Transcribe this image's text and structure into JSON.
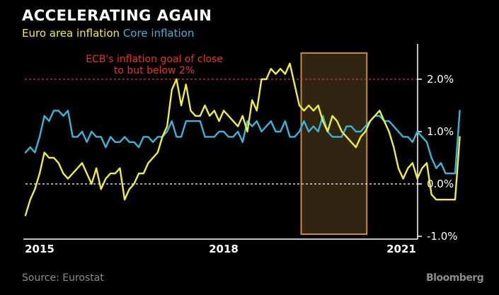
{
  "header": {
    "title": "ACCELERATING AGAIN",
    "legend_euro": "Euro area inflation",
    "legend_core": "Core inflation"
  },
  "footer": {
    "source": "Source: Eurostat",
    "brand": "Bloomberg"
  },
  "chart_data": {
    "type": "line",
    "title": "ACCELERATING AGAIN",
    "xlabel": "",
    "ylabel": "",
    "x_ticks": [
      "2015",
      "2018",
      "2021"
    ],
    "y_ticks": [
      "2.0%",
      "1.0%",
      "0.0%",
      "-1.0%"
    ],
    "y_tick_values": [
      2.0,
      1.0,
      0.0,
      -1.0
    ],
    "ylim": [
      -1.0,
      2.0
    ],
    "grid": false,
    "colors": {
      "euro": "#f2ee3e",
      "core": "#36b6db",
      "goal": "#e8302a",
      "highlight_fill": "#3a2a14",
      "highlight_stroke": "#c68a3c"
    },
    "annotation": "ECB's inflation goal of close to but below 2%",
    "annotation_lines": [
      "ECB's inflation goal of close",
      "to but below 2%"
    ],
    "goal_value": 2.0,
    "zero_line": 0.0,
    "highlight": {
      "from": "2019-12",
      "to": "2021-01"
    },
    "series": [
      {
        "name": "Euro area inflation",
        "color": "#f2ee3e",
        "points": [
          [
            "2015-01",
            -0.6
          ],
          [
            "2015-02",
            -0.3
          ],
          [
            "2015-03",
            -0.1
          ],
          [
            "2015-04",
            0.2
          ],
          [
            "2015-05",
            0.6
          ],
          [
            "2015-06",
            0.5
          ],
          [
            "2015-07",
            0.5
          ],
          [
            "2015-08",
            0.4
          ],
          [
            "2015-09",
            0.2
          ],
          [
            "2015-10",
            0.1
          ],
          [
            "2015-11",
            0.2
          ],
          [
            "2015-12",
            0.3
          ],
          [
            "2016-01",
            0.4
          ],
          [
            "2016-02",
            0.2
          ],
          [
            "2016-03",
            0.0
          ],
          [
            "2016-04",
            0.3
          ],
          [
            "2016-05",
            -0.1
          ],
          [
            "2016-06",
            0.1
          ],
          [
            "2016-07",
            0.2
          ],
          [
            "2016-08",
            0.2
          ],
          [
            "2016-09",
            0.3
          ],
          [
            "2016-10",
            -0.3
          ],
          [
            "2016-11",
            -0.1
          ],
          [
            "2016-12",
            0.0
          ],
          [
            "2017-01",
            0.2
          ],
          [
            "2017-02",
            0.2
          ],
          [
            "2017-03",
            0.4
          ],
          [
            "2017-04",
            0.5
          ],
          [
            "2017-05",
            0.6
          ],
          [
            "2017-06",
            0.9
          ],
          [
            "2017-07",
            1.1
          ],
          [
            "2017-08",
            1.8
          ],
          [
            "2017-09",
            2.0
          ],
          [
            "2017-10",
            1.5
          ],
          [
            "2017-11",
            1.9
          ],
          [
            "2017-12",
            1.4
          ],
          [
            "2018-01",
            1.3
          ],
          [
            "2018-02",
            1.3
          ],
          [
            "2018-03",
            1.5
          ],
          [
            "2018-04",
            1.3
          ],
          [
            "2018-05",
            1.4
          ],
          [
            "2018-06",
            1.2
          ],
          [
            "2018-07",
            1.4
          ],
          [
            "2018-08",
            1.3
          ],
          [
            "2018-09",
            1.2
          ],
          [
            "2018-10",
            1.1
          ],
          [
            "2018-11",
            1.3
          ],
          [
            "2018-12",
            1.0
          ],
          [
            "2019-01",
            1.6
          ],
          [
            "2019-02",
            1.4
          ],
          [
            "2019-03",
            2.0
          ],
          [
            "2019-04",
            2.0
          ],
          [
            "2019-05",
            2.2
          ],
          [
            "2019-06",
            2.1
          ],
          [
            "2019-07",
            2.2
          ],
          [
            "2019-08",
            2.1
          ],
          [
            "2019-09",
            2.3
          ],
          [
            "2019-10",
            1.9
          ],
          [
            "2019-11",
            1.5
          ],
          [
            "2019-12",
            1.4
          ],
          [
            "2020-01",
            1.5
          ],
          [
            "2020-02",
            1.4
          ],
          [
            "2020-03",
            1.5
          ],
          [
            "2020-04",
            1.2
          ],
          [
            "2020-05",
            1.0
          ],
          [
            "2020-06",
            1.3
          ],
          [
            "2020-07",
            1.2
          ],
          [
            "2020-08",
            1.0
          ],
          [
            "2020-09",
            0.9
          ],
          [
            "2020-10",
            0.8
          ],
          [
            "2020-11",
            0.7
          ],
          [
            "2020-12",
            0.9
          ],
          [
            "2021-01",
            1.0
          ],
          [
            "2021-02",
            1.2
          ],
          [
            "2021-03",
            1.3
          ],
          [
            "2021-04",
            1.4
          ],
          [
            "2021-05",
            1.2
          ],
          [
            "2021-06",
            1.0
          ],
          [
            "2021-07",
            0.7
          ],
          [
            "2021-08",
            0.3
          ],
          [
            "2021-09",
            0.1
          ],
          [
            "2021-10",
            0.3
          ],
          [
            "2021-11",
            0.4
          ],
          [
            "2021-12",
            0.1
          ],
          [
            "2022-01",
            0.3
          ],
          [
            "2022-02",
            0.4
          ],
          [
            "2022-03",
            -0.2
          ],
          [
            "2022-04",
            -0.3
          ],
          [
            "2022-05",
            -0.3
          ],
          [
            "2022-06",
            -0.3
          ],
          [
            "2022-07",
            -0.3
          ],
          [
            "2022-08",
            -0.3
          ],
          [
            "2022-09",
            0.9
          ]
        ]
      },
      {
        "name": "Core inflation",
        "color": "#36b6db",
        "points": [
          [
            "2015-01",
            0.6
          ],
          [
            "2015-02",
            0.7
          ],
          [
            "2015-03",
            0.6
          ],
          [
            "2015-04",
            0.9
          ],
          [
            "2015-05",
            1.3
          ],
          [
            "2015-06",
            1.2
          ],
          [
            "2015-07",
            1.4
          ],
          [
            "2015-08",
            1.4
          ],
          [
            "2015-09",
            1.3
          ],
          [
            "2015-10",
            1.4
          ],
          [
            "2015-11",
            0.9
          ],
          [
            "2015-12",
            0.9
          ],
          [
            "2016-01",
            1.0
          ],
          [
            "2016-02",
            0.8
          ],
          [
            "2016-03",
            1.0
          ],
          [
            "2016-04",
            0.9
          ],
          [
            "2016-05",
            0.9
          ],
          [
            "2016-06",
            0.7
          ],
          [
            "2016-07",
            0.9
          ],
          [
            "2016-08",
            0.8
          ],
          [
            "2016-09",
            0.8
          ],
          [
            "2016-10",
            0.9
          ],
          [
            "2016-11",
            0.8
          ],
          [
            "2016-12",
            0.8
          ],
          [
            "2017-01",
            0.7
          ],
          [
            "2017-02",
            0.9
          ],
          [
            "2017-03",
            0.9
          ],
          [
            "2017-04",
            0.8
          ],
          [
            "2017-05",
            0.9
          ],
          [
            "2017-06",
            0.9
          ],
          [
            "2017-07",
            1.0
          ],
          [
            "2017-08",
            1.2
          ],
          [
            "2017-09",
            0.9
          ],
          [
            "2017-10",
            0.9
          ],
          [
            "2017-11",
            1.2
          ],
          [
            "2017-12",
            1.2
          ],
          [
            "2018-01",
            1.2
          ],
          [
            "2018-02",
            1.2
          ],
          [
            "2018-03",
            0.9
          ],
          [
            "2018-04",
            0.9
          ],
          [
            "2018-05",
            0.9
          ],
          [
            "2018-06",
            1.0
          ],
          [
            "2018-07",
            1.0
          ],
          [
            "2018-08",
            0.9
          ],
          [
            "2018-09",
            0.9
          ],
          [
            "2018-10",
            1.0
          ],
          [
            "2018-11",
            0.8
          ],
          [
            "2018-12",
            1.2
          ],
          [
            "2019-01",
            1.1
          ],
          [
            "2019-02",
            1.2
          ],
          [
            "2019-03",
            1.0
          ],
          [
            "2019-04",
            1.1
          ],
          [
            "2019-05",
            1.2
          ],
          [
            "2019-06",
            1.0
          ],
          [
            "2019-07",
            1.0
          ],
          [
            "2019-08",
            1.2
          ],
          [
            "2019-09",
            0.9
          ],
          [
            "2019-10",
            0.9
          ],
          [
            "2019-11",
            1.0
          ],
          [
            "2019-12",
            1.2
          ],
          [
            "2020-01",
            1.0
          ],
          [
            "2020-02",
            1.1
          ],
          [
            "2020-03",
            1.0
          ],
          [
            "2020-04",
            1.3
          ],
          [
            "2020-05",
            1.0
          ],
          [
            "2020-06",
            0.9
          ],
          [
            "2020-07",
            0.9
          ],
          [
            "2020-08",
            0.9
          ],
          [
            "2020-09",
            1.1
          ],
          [
            "2020-10",
            1.1
          ],
          [
            "2020-11",
            1.0
          ],
          [
            "2020-12",
            1.0
          ],
          [
            "2021-01",
            1.1
          ],
          [
            "2021-02",
            1.2
          ],
          [
            "2021-03",
            1.3
          ],
          [
            "2021-04",
            1.3
          ],
          [
            "2021-05",
            1.2
          ],
          [
            "2021-06",
            1.2
          ],
          [
            "2021-07",
            1.1
          ],
          [
            "2021-08",
            1.0
          ],
          [
            "2021-09",
            0.9
          ],
          [
            "2021-10",
            0.9
          ],
          [
            "2021-11",
            0.8
          ],
          [
            "2021-12",
            1.0
          ],
          [
            "2022-01",
            0.9
          ],
          [
            "2022-02",
            0.8
          ],
          [
            "2022-03",
            0.5
          ],
          [
            "2022-04",
            0.3
          ],
          [
            "2022-05",
            0.4
          ],
          [
            "2022-06",
            0.2
          ],
          [
            "2022-07",
            0.2
          ],
          [
            "2022-08",
            0.2
          ],
          [
            "2022-09",
            1.4
          ]
        ]
      }
    ]
  }
}
